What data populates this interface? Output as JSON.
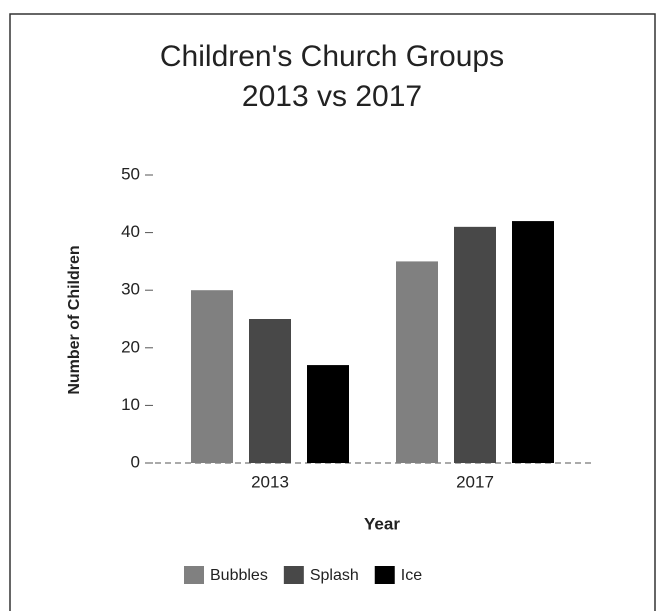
{
  "chart_data": {
    "type": "bar",
    "title": "Children's Church Groups",
    "subtitle": "2013 vs 2017",
    "x_label": "Year",
    "y_label": "Number of Children",
    "categories": [
      "2013",
      "2017"
    ],
    "series": [
      {
        "name": "Bubbles",
        "color": "#808080",
        "values": [
          30,
          35
        ]
      },
      {
        "name": "Splash",
        "color": "#484848",
        "values": [
          25,
          41
        ]
      },
      {
        "name": "Ice",
        "color": "#000000",
        "values": [
          17,
          42
        ]
      }
    ],
    "ylim": [
      0,
      50
    ],
    "yticks": [
      0,
      10,
      20,
      30,
      40,
      50
    ],
    "grid": false,
    "legend": "bottom"
  }
}
